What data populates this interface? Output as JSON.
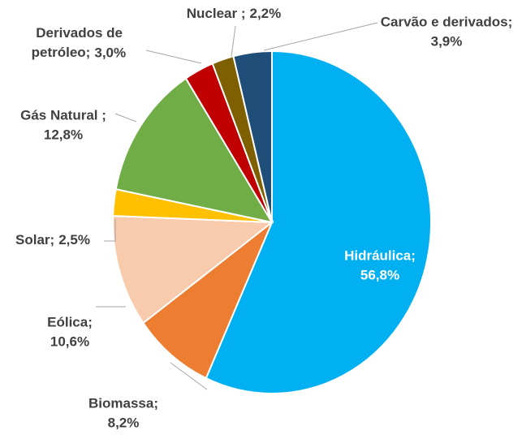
{
  "chart_data": {
    "type": "pie",
    "categories": [
      "Hidráulica;",
      "Biomassa;",
      "Eólica;",
      "Solar;",
      "Gás Natural ;",
      "Derivados de petróleo;",
      "Nuclear ;",
      "Carvão e derivados;"
    ],
    "values": [
      56.8,
      8.2,
      10.6,
      2.5,
      12.8,
      3.0,
      2.2,
      3.9
    ],
    "value_labels": [
      "56,8%",
      "8,2%",
      "10,6%",
      "2,5%",
      "12,8%",
      "3,0%",
      "2,2%",
      "3,9%"
    ],
    "colors": [
      "#00b0f0",
      "#ed7d31",
      "#f8cbad",
      "#ffc000",
      "#70ad47",
      "#c00000",
      "#7f6000",
      "#1f4e79"
    ]
  }
}
